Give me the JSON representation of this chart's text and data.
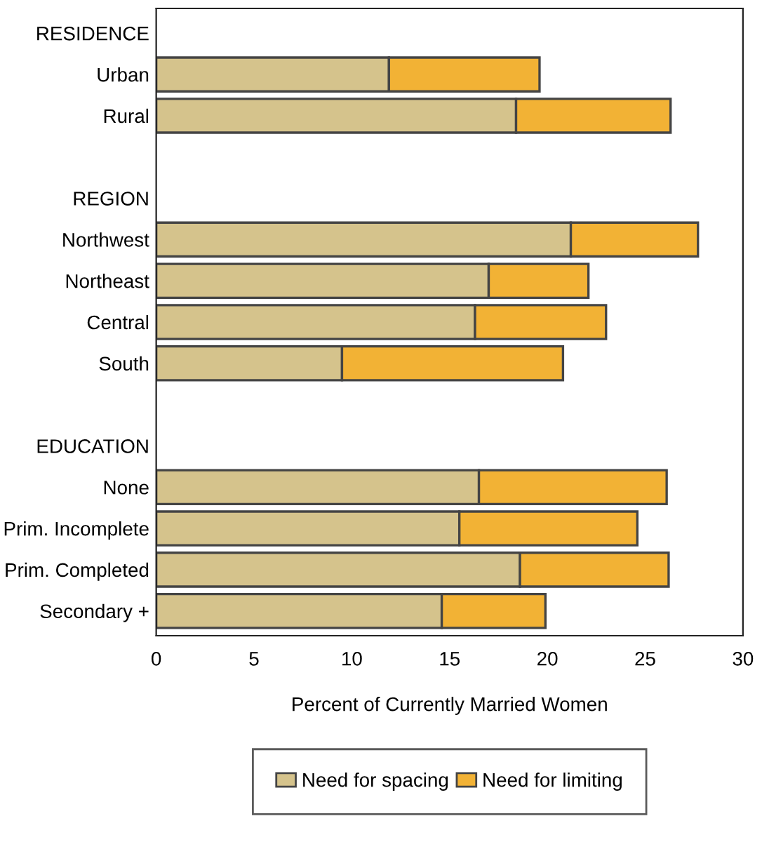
{
  "chart_data": {
    "type": "bar",
    "orientation": "horizontal",
    "stacked": true,
    "xlabel": "Percent of Currently Married Women",
    "categories": [
      "RESIDENCE",
      "Urban",
      "Rural",
      null,
      "REGION",
      "Northwest",
      "Northeast",
      "Central",
      "South",
      null,
      "EDUCATION",
      "None",
      "Prim. Incomplete",
      "Prim. Completed",
      "Secondary +"
    ],
    "series": [
      {
        "name": "Need for spacing",
        "color": "#d5c38c",
        "values": [
          null,
          11.9,
          18.4,
          null,
          null,
          21.2,
          17.0,
          16.3,
          9.5,
          null,
          null,
          16.5,
          15.5,
          18.6,
          14.6
        ]
      },
      {
        "name": "Need for limiting",
        "color": "#f2b235",
        "values": [
          null,
          7.7,
          7.9,
          null,
          null,
          6.5,
          5.1,
          6.7,
          11.3,
          null,
          null,
          9.6,
          9.1,
          7.6,
          5.3
        ]
      }
    ],
    "xlim": [
      0,
      30
    ],
    "xticks": [
      0,
      5,
      10,
      15,
      20,
      25,
      30
    ],
    "grid": false,
    "legend": "bottom"
  }
}
